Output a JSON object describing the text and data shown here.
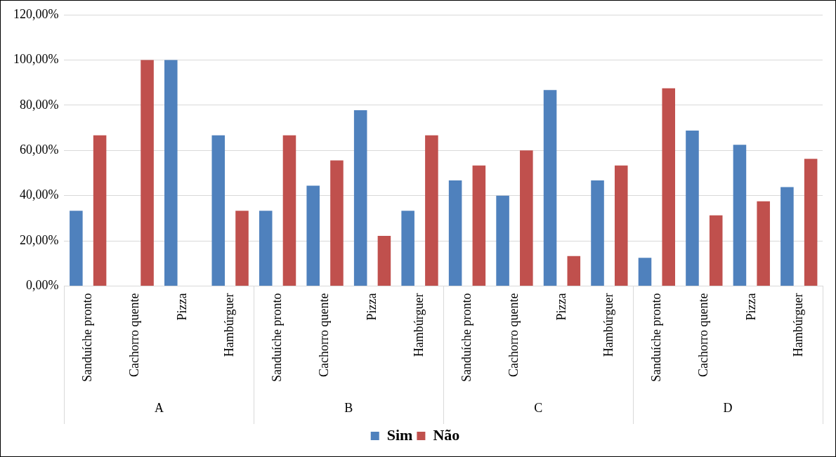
{
  "chart_data": {
    "type": "bar",
    "categories": [
      "Sanduíche pronto",
      "Cachorro quente",
      "Pizza",
      "Hambúrguer",
      "Sanduíche pronto",
      "Cachorro quente",
      "Pizza",
      "Hambúrguer",
      "Sanduíche pronto",
      "Cachorro quente",
      "Pizza",
      "Hambúrguer",
      "Sanduíche pronto",
      "Cachorro quente",
      "Pizza",
      "Hambúrguer"
    ],
    "annotations": [
      "A",
      "B",
      "C",
      "D"
    ],
    "series": [
      {
        "name": "Sim",
        "color": "#4f81bd",
        "values": [
          33.3,
          0,
          100,
          66.7,
          33.3,
          44.4,
          77.8,
          33.3,
          46.7,
          40,
          86.7,
          46.7,
          12.5,
          68.8,
          62.5,
          43.8
        ]
      },
      {
        "name": "Não",
        "color": "#c0504d",
        "values": [
          66.7,
          100,
          0,
          33.3,
          66.7,
          55.6,
          22.2,
          66.7,
          53.3,
          60,
          13.3,
          53.3,
          87.5,
          31.3,
          37.5,
          56.3
        ]
      }
    ],
    "ylim": [
      0,
      120
    ],
    "yticks": [
      {
        "value": 0,
        "label": "0,00%"
      },
      {
        "value": 20,
        "label": "20,00%"
      },
      {
        "value": 40,
        "label": "40,00%"
      },
      {
        "value": 60,
        "label": "60,00%"
      },
      {
        "value": 80,
        "label": "80,00%"
      },
      {
        "value": 100,
        "label": "100,00%"
      },
      {
        "value": 120,
        "label": "120,00%"
      }
    ],
    "grid": "y",
    "legend": "bottom"
  }
}
